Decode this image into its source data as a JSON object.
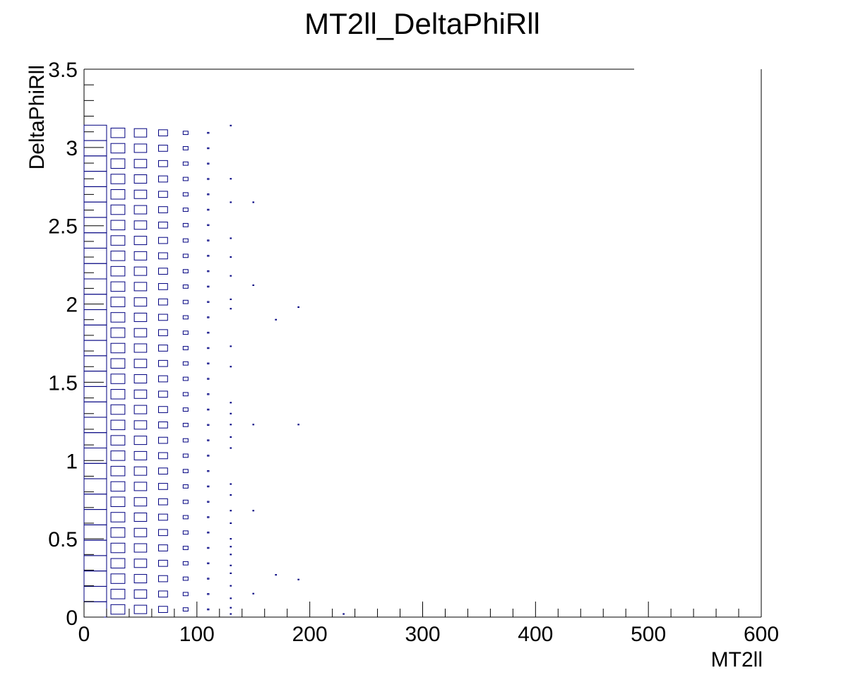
{
  "chart_data": {
    "type": "heatmap",
    "style": "box",
    "title": "MT2ll_DeltaPhiRll",
    "xlabel": "MT2ll",
    "ylabel": "DeltaPhiRll",
    "xlim": [
      0,
      600
    ],
    "ylim": [
      0,
      3.5
    ],
    "x_ticks": [
      "0",
      "100",
      "200",
      "300",
      "400",
      "500",
      "600"
    ],
    "y_ticks": [
      "0",
      "0.5",
      "1",
      "1.5",
      "2",
      "2.5",
      "3",
      "3.5"
    ],
    "box_color": "#000080",
    "grid": false,
    "legend": "none",
    "bins": {
      "x_width": 20,
      "y_width": 0.0982
    },
    "columns": [
      {
        "x": 10,
        "y_from": 0,
        "y_to": 3.14,
        "size": 1.0
      },
      {
        "x": 30,
        "y_from": 0,
        "y_to": 3.14,
        "size": 0.62
      },
      {
        "x": 50,
        "y_from": 0,
        "y_to": 3.14,
        "size": 0.55
      },
      {
        "x": 70,
        "y_from": 0,
        "y_to": 3.14,
        "size": 0.4
      },
      {
        "x": 90,
        "y_from": 0,
        "y_to": 3.14,
        "size": 0.22
      },
      {
        "x": 110,
        "y_from": 0,
        "y_to": 3.14,
        "size": 0.07
      }
    ],
    "points": [
      {
        "x": 130,
        "y": 3.14,
        "size": 0.05
      },
      {
        "x": 130,
        "y": 2.8,
        "size": 0.05
      },
      {
        "x": 130,
        "y": 2.65,
        "size": 0.05
      },
      {
        "x": 130,
        "y": 2.42,
        "size": 0.05
      },
      {
        "x": 130,
        "y": 2.3,
        "size": 0.05
      },
      {
        "x": 130,
        "y": 2.18,
        "size": 0.05
      },
      {
        "x": 130,
        "y": 2.03,
        "size": 0.05
      },
      {
        "x": 130,
        "y": 1.97,
        "size": 0.05
      },
      {
        "x": 130,
        "y": 1.73,
        "size": 0.05
      },
      {
        "x": 130,
        "y": 1.6,
        "size": 0.05
      },
      {
        "x": 130,
        "y": 1.37,
        "size": 0.05
      },
      {
        "x": 130,
        "y": 1.3,
        "size": 0.05
      },
      {
        "x": 130,
        "y": 1.23,
        "size": 0.05
      },
      {
        "x": 130,
        "y": 1.15,
        "size": 0.05
      },
      {
        "x": 130,
        "y": 1.08,
        "size": 0.05
      },
      {
        "x": 130,
        "y": 0.85,
        "size": 0.05
      },
      {
        "x": 130,
        "y": 0.78,
        "size": 0.05
      },
      {
        "x": 130,
        "y": 0.68,
        "size": 0.05
      },
      {
        "x": 130,
        "y": 0.6,
        "size": 0.05
      },
      {
        "x": 130,
        "y": 0.5,
        "size": 0.05
      },
      {
        "x": 130,
        "y": 0.45,
        "size": 0.05
      },
      {
        "x": 130,
        "y": 0.4,
        "size": 0.05
      },
      {
        "x": 130,
        "y": 0.33,
        "size": 0.05
      },
      {
        "x": 130,
        "y": 0.28,
        "size": 0.05
      },
      {
        "x": 130,
        "y": 0.2,
        "size": 0.05
      },
      {
        "x": 130,
        "y": 0.12,
        "size": 0.05
      },
      {
        "x": 130,
        "y": 0.06,
        "size": 0.05
      },
      {
        "x": 130,
        "y": 0.02,
        "size": 0.05
      },
      {
        "x": 150,
        "y": 2.65,
        "size": 0.05
      },
      {
        "x": 150,
        "y": 2.12,
        "size": 0.05
      },
      {
        "x": 150,
        "y": 1.23,
        "size": 0.05
      },
      {
        "x": 150,
        "y": 0.68,
        "size": 0.05
      },
      {
        "x": 150,
        "y": 0.15,
        "size": 0.05
      },
      {
        "x": 170,
        "y": 1.9,
        "size": 0.05
      },
      {
        "x": 170,
        "y": 0.27,
        "size": 0.05
      },
      {
        "x": 190,
        "y": 1.98,
        "size": 0.05
      },
      {
        "x": 190,
        "y": 1.23,
        "size": 0.05
      },
      {
        "x": 190,
        "y": 0.24,
        "size": 0.05
      },
      {
        "x": 230,
        "y": 0.02,
        "size": 0.05
      }
    ]
  }
}
